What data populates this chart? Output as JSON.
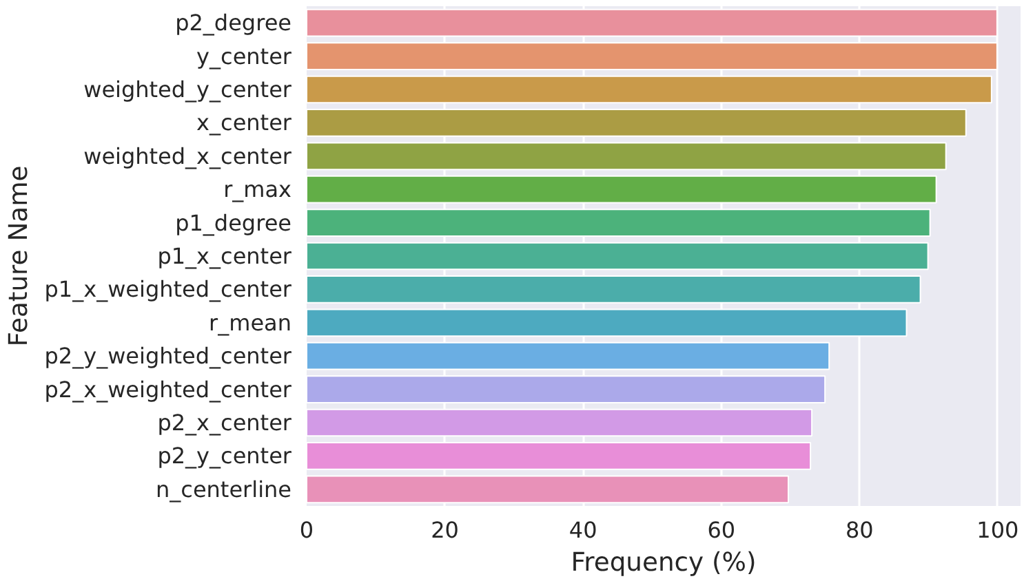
{
  "chart_data": {
    "type": "bar",
    "orientation": "horizontal",
    "xlabel": "Frequency (%)",
    "ylabel": "Feature Name",
    "categories": [
      "p2_degree",
      "y_center",
      "weighted_y_center",
      "x_center",
      "weighted_x_center",
      "r_max",
      "p1_degree",
      "p1_x_center",
      "p1_x_weighted_center",
      "r_mean",
      "p2_y_weighted_center",
      "p2_x_weighted_center",
      "p2_x_center",
      "p2_y_center",
      "n_centerline"
    ],
    "values": [
      99.9,
      99.9,
      99.1,
      95.4,
      92.5,
      91.1,
      90.2,
      89.9,
      88.8,
      86.8,
      75.6,
      75.0,
      73.1,
      72.9,
      69.7
    ],
    "colors": [
      "#e8909c",
      "#e4946e",
      "#c99a4a",
      "#ab9c44",
      "#8fa344",
      "#62ae47",
      "#4cb27b",
      "#4bb094",
      "#4badaa",
      "#4daac0",
      "#6aaee3",
      "#aba9ea",
      "#d29ae6",
      "#e88ed8",
      "#e891b8"
    ],
    "xlim": [
      0,
      103.3
    ],
    "xticks": [
      0,
      20,
      40,
      60,
      80,
      100
    ],
    "grid": "x"
  }
}
